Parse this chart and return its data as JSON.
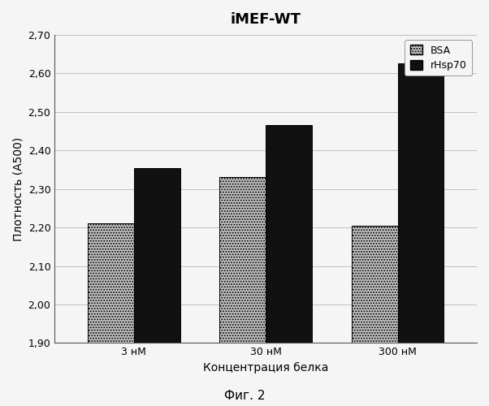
{
  "title": "iMEF-WT",
  "xlabel": "Концентрация белка",
  "ylabel": "Плотность (А500)",
  "categories": [
    "3 нМ",
    "30 нМ",
    "300 нМ"
  ],
  "bsa_values": [
    2.21,
    2.33,
    2.205
  ],
  "rhsp70_values": [
    2.355,
    2.465,
    2.625
  ],
  "bsa_color": "#c8c8c8",
  "rhsp70_color": "#111111",
  "ylim_min": 1.9,
  "ylim_max": 2.7,
  "yticks": [
    1.9,
    2.0,
    2.1,
    2.2,
    2.3,
    2.4,
    2.5,
    2.6,
    2.7
  ],
  "ytick_labels": [
    "1,90",
    "2,00",
    "2,10",
    "2,20",
    "2,30",
    "2,40",
    "2,50",
    "2,60",
    "2,70"
  ],
  "legend_labels": [
    "BSA",
    "rHsp70"
  ],
  "fig_caption": "Фиг. 2",
  "bar_width": 0.35,
  "title_fontsize": 13,
  "label_fontsize": 10,
  "tick_fontsize": 9,
  "legend_fontsize": 9,
  "caption_fontsize": 11,
  "background_color": "#f5f5f5",
  "plot_bg_color": "#f5f5f5"
}
